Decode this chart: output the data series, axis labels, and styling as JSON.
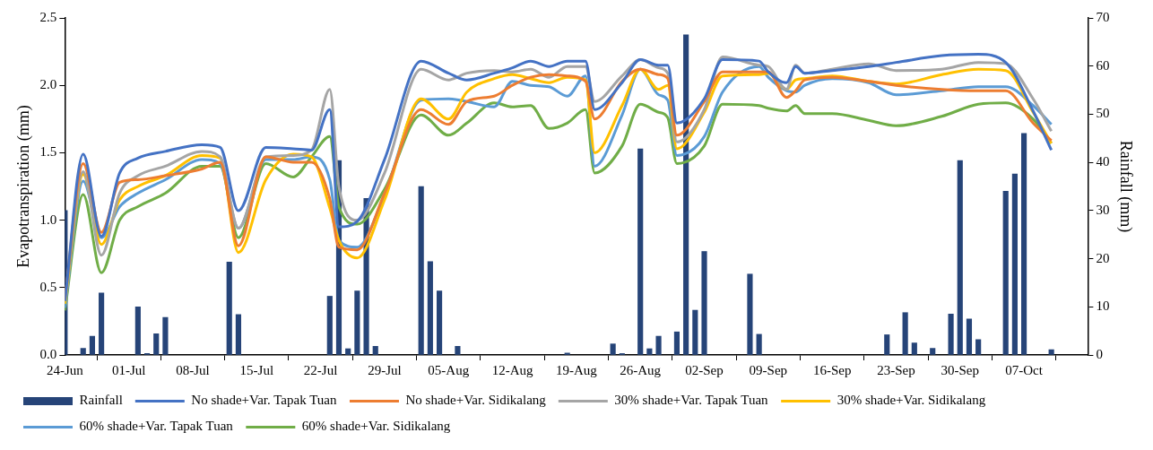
{
  "chart_data": {
    "type": "line",
    "ylabel": "Evapotranspiration (mm)",
    "y2label": "Rainfall (mm)",
    "x": [
      "--06-24",
      "--06-26",
      "--06-28",
      "--06-30",
      "--07-02",
      "--07-05",
      "--07-09",
      "--07-11",
      "--07-13",
      "--07-16",
      "--07-19",
      "--07-21",
      "--07-23",
      "--07-24",
      "--07-26",
      "--07-29",
      "--08-02",
      "--08-05",
      "--08-07",
      "--08-10",
      "--08-12",
      "--08-14",
      "--08-16",
      "--08-18",
      "--08-20",
      "--08-21",
      "--08-24",
      "--08-26",
      "--08-28",
      "--08-29",
      "--08-30",
      "--09-02",
      "--09-04",
      "--09-08",
      "--09-09",
      "--09-11",
      "--09-12",
      "--09-13",
      "--09-16",
      "--09-20",
      "--09-23",
      "--09-28",
      "--10-02",
      "--10-05",
      "--10-08",
      "--10-10"
    ],
    "series": [
      {
        "name": "Rainfall",
        "type": "bar",
        "axis": "y2",
        "color": "#264478",
        "x": [
          "--06-24",
          "--06-26",
          "--06-27",
          "--06-28",
          "--07-02",
          "--07-03",
          "--07-04",
          "--07-05",
          "--07-12",
          "--07-13",
          "--07-23",
          "--07-24",
          "--07-25",
          "--07-26",
          "--07-27",
          "--07-28",
          "--08-02",
          "--08-03",
          "--08-04",
          "--08-06",
          "--08-18",
          "--08-23",
          "--08-24",
          "--08-26",
          "--08-27",
          "--08-28",
          "--08-30",
          "--08-31",
          "--09-01",
          "--09-02",
          "--09-07",
          "--09-08",
          "--09-22",
          "--09-24",
          "--09-25",
          "--09-27",
          "--09-29",
          "--09-30",
          "--10-01",
          "--10-02",
          "--10-05",
          "--10-06",
          "--10-07",
          "--10-10"
        ],
        "values": [
          30,
          1.4,
          3.9,
          12.9,
          10,
          0.3,
          4.4,
          7.8,
          19.3,
          8.4,
          12.2,
          40.4,
          1.3,
          13.3,
          32.5,
          1.8,
          35,
          19.4,
          13.3,
          1.8,
          0.4,
          2.3,
          0.3,
          42.8,
          1.3,
          3.9,
          4.8,
          66.5,
          9.3,
          21.5,
          16.8,
          4.3,
          4.2,
          8.8,
          2.5,
          1.4,
          8.5,
          40.4,
          7.5,
          3.2,
          34,
          37.6,
          46,
          1.1
        ]
      },
      {
        "name": "No shade+Var. Tapak Tuan",
        "color": "#4472c4",
        "values": [
          0.4,
          1.49,
          0.88,
          1.35,
          1.46,
          1.51,
          1.56,
          1.54,
          1.07,
          1.54,
          1.53,
          1.52,
          1.82,
          0.95,
          0.99,
          1.45,
          2.18,
          2.09,
          2.04,
          2.09,
          2.13,
          2.18,
          2.14,
          2.18,
          2.18,
          1.82,
          2.02,
          2.19,
          2.15,
          2.15,
          1.72,
          1.9,
          2.19,
          2.18,
          2.1,
          2.02,
          2.14,
          2.09,
          2.11,
          2.14,
          2.17,
          2.22,
          2.23,
          2.17,
          1.81,
          1.52
        ]
      },
      {
        "name": "No shade+Var. Sidikalang",
        "color": "#ed7d31",
        "values": [
          0.41,
          1.42,
          0.91,
          1.28,
          1.3,
          1.33,
          1.38,
          1.43,
          0.81,
          1.47,
          1.43,
          1.43,
          1.16,
          0.8,
          0.78,
          1.2,
          1.82,
          1.71,
          1.88,
          1.92,
          2.0,
          2.06,
          2.08,
          2.07,
          2.03,
          1.75,
          2.03,
          2.12,
          2.08,
          2.05,
          1.63,
          1.88,
          2.1,
          2.1,
          2.1,
          1.91,
          1.96,
          2.04,
          2.06,
          2.03,
          2.0,
          1.97,
          1.96,
          1.96,
          1.72,
          1.59
        ]
      },
      {
        "name": "30% shade+Var. Tapak Tuan",
        "color": "#a5a5a5",
        "values": [
          0.41,
          1.36,
          0.74,
          1.2,
          1.33,
          1.4,
          1.51,
          1.47,
          0.94,
          1.47,
          1.48,
          1.52,
          1.97,
          1.25,
          1.0,
          1.35,
          2.12,
          2.04,
          2.09,
          2.11,
          2.1,
          2.12,
          2.06,
          2.14,
          2.14,
          1.88,
          2.07,
          2.19,
          2.13,
          2.09,
          1.58,
          1.82,
          2.21,
          2.15,
          2.14,
          1.97,
          2.15,
          2.09,
          2.12,
          2.16,
          2.11,
          2.12,
          2.17,
          2.16,
          1.9,
          1.66
        ]
      },
      {
        "name": "30% shade+Var. Sidikalang",
        "color": "#ffc000",
        "values": [
          0.38,
          1.34,
          0.82,
          1.15,
          1.25,
          1.33,
          1.48,
          1.46,
          0.76,
          1.3,
          1.49,
          1.47,
          1.09,
          0.85,
          0.72,
          1.15,
          1.9,
          1.75,
          1.95,
          2.05,
          2.08,
          2.05,
          2.02,
          2.06,
          2.04,
          1.5,
          1.85,
          2.12,
          1.97,
          2.0,
          1.53,
          1.8,
          2.07,
          2.08,
          2.09,
          1.97,
          2.04,
          2.05,
          2.07,
          2.03,
          2.01,
          2.08,
          2.12,
          2.11,
          1.8,
          1.57
        ]
      },
      {
        "name": "60% shade+Var. Tapak Tuan",
        "color": "#5b9bd5",
        "values": [
          0.35,
          1.29,
          0.87,
          1.1,
          1.2,
          1.3,
          1.45,
          1.42,
          0.94,
          1.45,
          1.45,
          1.47,
          1.3,
          0.85,
          0.8,
          1.19,
          1.89,
          1.9,
          1.88,
          1.84,
          2.03,
          2.0,
          1.99,
          1.92,
          2.07,
          1.4,
          1.78,
          2.12,
          1.93,
          1.89,
          1.48,
          1.62,
          1.95,
          2.14,
          2.06,
          1.96,
          1.95,
          2.0,
          2.05,
          2.02,
          1.93,
          1.96,
          1.99,
          1.99,
          1.85,
          1.71
        ]
      },
      {
        "name": "60% shade+Var. Sidikalang",
        "color": "#70ad47",
        "values": [
          0.33,
          1.19,
          0.61,
          1.0,
          1.1,
          1.2,
          1.4,
          1.4,
          0.87,
          1.42,
          1.32,
          1.47,
          1.62,
          1.1,
          0.97,
          1.23,
          1.78,
          1.63,
          1.72,
          1.87,
          1.84,
          1.85,
          1.68,
          1.72,
          1.82,
          1.35,
          1.55,
          1.86,
          1.8,
          1.76,
          1.42,
          1.55,
          1.86,
          1.85,
          1.83,
          1.81,
          1.85,
          1.79,
          1.79,
          1.74,
          1.7,
          1.77,
          1.86,
          1.87,
          1.75,
          1.57
        ]
      }
    ],
    "xlim": [
      "--06-24",
      "--10-14"
    ],
    "xticks": [
      {
        "value": "--06-24",
        "label": "24-Jun"
      },
      {
        "value": "--07-01",
        "label": "01-Jul"
      },
      {
        "value": "--07-08",
        "label": "08-Jul"
      },
      {
        "value": "--07-15",
        "label": "15-Jul"
      },
      {
        "value": "--07-22",
        "label": "22-Jul"
      },
      {
        "value": "--07-29",
        "label": "29-Jul"
      },
      {
        "value": "--08-05",
        "label": "05-Aug"
      },
      {
        "value": "--08-12",
        "label": "12-Aug"
      },
      {
        "value": "--08-19",
        "label": "19-Aug"
      },
      {
        "value": "--08-26",
        "label": "26-Aug"
      },
      {
        "value": "--09-02",
        "label": "02-Sep"
      },
      {
        "value": "--09-09",
        "label": "09-Sep"
      },
      {
        "value": "--09-16",
        "label": "16-Sep"
      },
      {
        "value": "--09-23",
        "label": "23-Sep"
      },
      {
        "value": "--09-30",
        "label": "30-Sep"
      },
      {
        "value": "--10-07",
        "label": "07-Oct"
      },
      {
        "value": "--10-14",
        "label": null
      }
    ],
    "ylim": [
      0,
      2.5
    ],
    "yticks": [
      {
        "value": 0,
        "label": "0.0"
      },
      {
        "value": 0.5,
        "label": "0.5"
      },
      {
        "value": 1,
        "label": "1.0"
      },
      {
        "value": 1.5,
        "label": "1.5"
      },
      {
        "value": 2,
        "label": "2.0"
      },
      {
        "value": 2.5,
        "label": "2.5"
      }
    ],
    "y2lim": [
      0,
      70
    ],
    "y2ticks": [
      0,
      10,
      20,
      30,
      40,
      50,
      60,
      70
    ],
    "legend": "bottom",
    "marker": "none",
    "line_style": "solid"
  }
}
